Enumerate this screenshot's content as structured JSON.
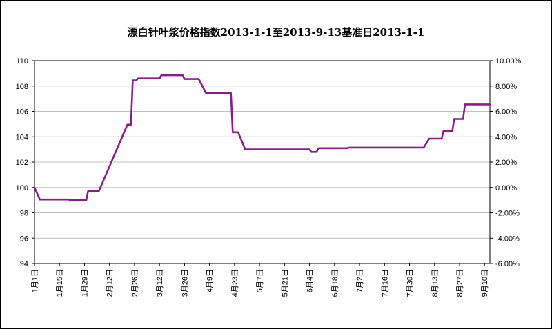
{
  "chart_data": {
    "type": "line",
    "title": "漂白针叶浆价格指数2013-1-1至2013-9-13基准日2013-1-1",
    "xlabel": "",
    "ylabel": "",
    "ylim": [
      94,
      110
    ],
    "y_ticks": [
      "94",
      "96",
      "98",
      "100",
      "102",
      "104",
      "106",
      "108",
      "110"
    ],
    "y2lim": [
      -6,
      10
    ],
    "y2_ticks": [
      "-6.00%",
      "-4.00%",
      "-2.00%",
      "0.00%",
      "2.00%",
      "4.00%",
      "6.00%",
      "8.00%",
      "10.00%"
    ],
    "x_tick_labels": [
      "1月1日",
      "1月15日",
      "1月29日",
      "2月12日",
      "2月26日",
      "3月12日",
      "3月26日",
      "4月9日",
      "4月23日",
      "5月7日",
      "5月21日",
      "6月4日",
      "6月18日",
      "7月2日",
      "7月16日",
      "7月30日",
      "8月13日",
      "8月27日",
      "9月10日"
    ],
    "grid": true,
    "legend": "none",
    "line_color": "#8B1A8F",
    "series": [
      {
        "x": [
          "2013-01-01",
          "2013-01-04",
          "2013-01-20",
          "2013-01-21",
          "2013-01-30",
          "2013-01-31",
          "2013-02-05",
          "2013-02-06",
          "2013-02-22",
          "2013-02-24",
          "2013-02-25",
          "2013-02-27",
          "2013-02-28",
          "2013-03-12",
          "2013-03-13",
          "2013-03-25",
          "2013-03-26",
          "2013-04-03",
          "2013-04-07",
          "2013-04-21",
          "2013-04-22",
          "2013-04-25",
          "2013-04-29",
          "2013-05-27",
          "2013-06-04",
          "2013-06-05",
          "2013-06-08",
          "2013-06-09",
          "2013-06-25",
          "2013-06-26",
          "2013-08-07",
          "2013-08-10",
          "2013-08-17",
          "2013-08-18",
          "2013-08-23",
          "2013-08-24",
          "2013-08-29",
          "2013-08-30",
          "2013-09-13"
        ],
        "values": [
          100.0,
          99.05,
          99.05,
          99.0,
          99.0,
          99.7,
          99.7,
          99.7,
          104.95,
          104.95,
          108.45,
          108.45,
          108.6,
          108.6,
          108.85,
          108.85,
          108.55,
          108.55,
          107.45,
          107.45,
          104.35,
          104.35,
          103.0,
          103.0,
          103.0,
          102.8,
          102.8,
          103.1,
          103.1,
          103.15,
          103.15,
          103.85,
          103.85,
          104.45,
          104.45,
          105.4,
          105.4,
          106.55,
          106.55
        ]
      }
    ]
  }
}
